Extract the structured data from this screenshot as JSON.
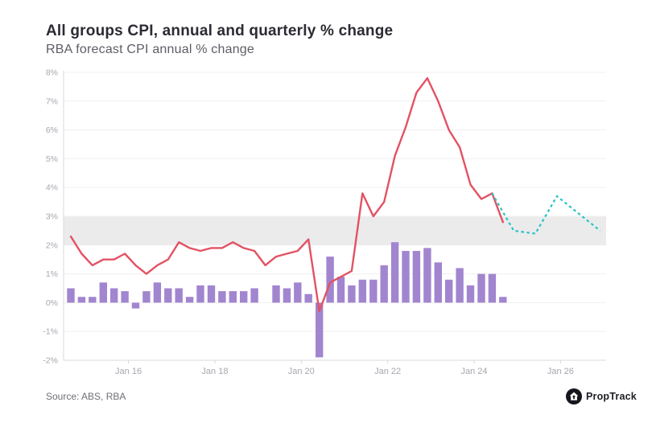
{
  "header": {
    "title": "All groups CPI, annual and quarterly % change",
    "subtitle": "RBA forecast CPI annual % change"
  },
  "footer": {
    "source": "Source: ABS, RBA",
    "brand": "PropTrack",
    "brand_icon": "house-in-circle-icon"
  },
  "colors": {
    "annual_line": "#e35263",
    "quarterly_bar": "#a285cf",
    "forecast_line": "#27c3c7",
    "target_band": "#ebebec",
    "gridline": "#f0f0f2",
    "axis": "#d9d9de",
    "tick_label": "#a6a7ae",
    "title": "#2b2b33",
    "subtitle": "#5d5d66",
    "source": "#6e6e77",
    "brand": "#1e1e26"
  },
  "chart_data": {
    "type": "bar",
    "title": "All groups CPI, annual and quarterly % change",
    "subtitle": "RBA forecast CPI annual % change",
    "grid": true,
    "legend": "none",
    "ylim": [
      -2,
      8
    ],
    "y_ticks": [
      "8%",
      "7%",
      "6%",
      "5%",
      "4%",
      "3%",
      "2%",
      "1%",
      "0%",
      "-1%",
      "-2%"
    ],
    "x_ticks": [
      "Jan 16",
      "Jan 18",
      "Jan 20",
      "Jan 22",
      "Jan 24",
      "Jan 26"
    ],
    "target_band": {
      "from": 2,
      "to": 3
    },
    "categories": [
      "Sep-14",
      "Dec-14",
      "Mar-15",
      "Jun-15",
      "Sep-15",
      "Dec-15",
      "Mar-16",
      "Jun-16",
      "Sep-16",
      "Dec-16",
      "Mar-17",
      "Jun-17",
      "Sep-17",
      "Dec-17",
      "Mar-18",
      "Jun-18",
      "Sep-18",
      "Dec-18",
      "Mar-19",
      "Jun-19",
      "Sep-19",
      "Dec-19",
      "Mar-20",
      "Jun-20",
      "Sep-20",
      "Dec-20",
      "Mar-21",
      "Jun-21",
      "Sep-21",
      "Dec-21",
      "Mar-22",
      "Jun-22",
      "Sep-22",
      "Dec-22",
      "Mar-23",
      "Jun-23",
      "Sep-23",
      "Dec-23",
      "Mar-24",
      "Jun-24",
      "Sep-24"
    ],
    "series": [
      {
        "name": "All groups CPI, annual % change",
        "type": "line",
        "color_key": "annual_line",
        "values": [
          2.3,
          1.7,
          1.3,
          1.5,
          1.5,
          1.7,
          1.3,
          1.0,
          1.3,
          1.5,
          2.1,
          1.9,
          1.8,
          1.9,
          1.9,
          2.1,
          1.9,
          1.8,
          1.3,
          1.6,
          1.7,
          1.8,
          2.2,
          -0.3,
          0.7,
          0.9,
          1.1,
          3.8,
          3.0,
          3.5,
          5.1,
          6.1,
          7.3,
          7.8,
          7.0,
          6.0,
          5.4,
          4.1,
          3.6,
          3.8,
          2.8
        ]
      },
      {
        "name": "All groups CPI, quarterly % change",
        "type": "bar",
        "color_key": "quarterly_bar",
        "values": [
          0.5,
          0.2,
          0.2,
          0.7,
          0.5,
          0.4,
          -0.2,
          0.4,
          0.7,
          0.5,
          0.5,
          0.2,
          0.6,
          0.6,
          0.4,
          0.4,
          0.4,
          0.5,
          0.0,
          0.6,
          0.5,
          0.7,
          0.3,
          -1.9,
          1.6,
          0.9,
          0.6,
          0.8,
          0.8,
          1.3,
          2.1,
          1.8,
          1.8,
          1.9,
          1.4,
          0.8,
          1.2,
          0.6,
          1.0,
          1.0,
          0.2
        ]
      },
      {
        "name": "RBA forecast CPI annual % change",
        "type": "dashed-line",
        "color_key": "forecast_line",
        "points": [
          {
            "label": "Jun-24",
            "q": 39,
            "value": 3.8
          },
          {
            "label": "Dec-24",
            "q": 41,
            "value": 2.5
          },
          {
            "label": "Jun-25",
            "q": 43,
            "value": 2.4
          },
          {
            "label": "Dec-25",
            "q": 45,
            "value": 3.7
          },
          {
            "label": "Jun-26",
            "q": 47,
            "value": 3.1
          },
          {
            "label": "Dec-26",
            "q": 49,
            "value": 2.5
          }
        ]
      }
    ]
  }
}
